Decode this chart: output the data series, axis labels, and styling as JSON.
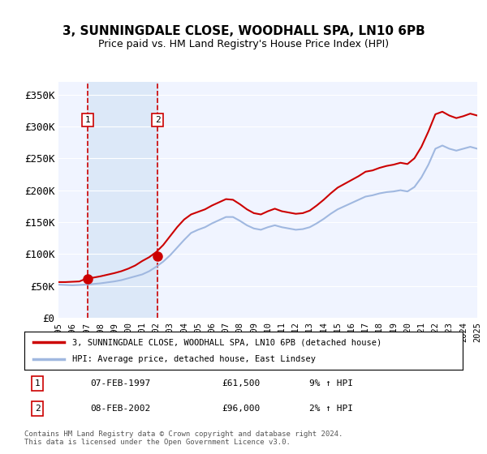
{
  "title": "3, SUNNINGDALE CLOSE, WOODHALL SPA, LN10 6PB",
  "subtitle": "Price paid vs. HM Land Registry's House Price Index (HPI)",
  "legend_line1": "3, SUNNINGDALE CLOSE, WOODHALL SPA, LN10 6PB (detached house)",
  "legend_line2": "HPI: Average price, detached house, East Lindsey",
  "sale1_label": "1",
  "sale1_date": "07-FEB-1997",
  "sale1_price": "£61,500",
  "sale1_hpi": "9% ↑ HPI",
  "sale2_label": "2",
  "sale2_date": "08-FEB-2002",
  "sale2_price": "£96,000",
  "sale2_hpi": "2% ↑ HPI",
  "footnote": "Contains HM Land Registry data © Crown copyright and database right 2024.\nThis data is licensed under the Open Government Licence v3.0.",
  "bg_color": "#ffffff",
  "plot_bg_color": "#f0f4ff",
  "grid_color": "#ffffff",
  "hpi_line_color": "#a0b8e0",
  "price_line_color": "#cc0000",
  "sale_marker_color": "#cc0000",
  "shading_color": "#dce8f8",
  "dashed_line_color": "#cc0000",
  "ylim": [
    0,
    370000
  ],
  "yticks": [
    0,
    50000,
    100000,
    150000,
    200000,
    250000,
    300000,
    350000
  ],
  "ytick_labels": [
    "£0",
    "£50K",
    "£100K",
    "£150K",
    "£200K",
    "£250K",
    "£300K",
    "£350K"
  ],
  "x_start_year": 1995,
  "x_end_year": 2025,
  "sale1_year": 1997.1,
  "sale2_year": 2002.1,
  "hpi_years": [
    1995,
    1995.5,
    1996,
    1996.5,
    1997,
    1997.5,
    1998,
    1998.5,
    1999,
    1999.5,
    2000,
    2000.5,
    2001,
    2001.5,
    2002,
    2002.5,
    2003,
    2003.5,
    2004,
    2004.5,
    2005,
    2005.5,
    2006,
    2006.5,
    2007,
    2007.5,
    2008,
    2008.5,
    2009,
    2009.5,
    2010,
    2010.5,
    2011,
    2011.5,
    2012,
    2012.5,
    2013,
    2013.5,
    2014,
    2014.5,
    2015,
    2015.5,
    2016,
    2016.5,
    2017,
    2017.5,
    2018,
    2018.5,
    2019,
    2019.5,
    2020,
    2020.5,
    2021,
    2021.5,
    2022,
    2022.5,
    2023,
    2023.5,
    2024,
    2024.5,
    2025
  ],
  "hpi_values": [
    52000,
    51500,
    51000,
    51500,
    52000,
    53000,
    54000,
    55500,
    57000,
    59000,
    62000,
    65000,
    68000,
    73000,
    80000,
    88000,
    98000,
    110000,
    122000,
    133000,
    138000,
    142000,
    148000,
    153000,
    158000,
    158000,
    152000,
    145000,
    140000,
    138000,
    142000,
    145000,
    142000,
    140000,
    138000,
    139000,
    142000,
    148000,
    155000,
    163000,
    170000,
    175000,
    180000,
    185000,
    190000,
    192000,
    195000,
    197000,
    198000,
    200000,
    198000,
    205000,
    220000,
    240000,
    265000,
    270000,
    265000,
    262000,
    265000,
    268000,
    265000
  ],
  "price_years": [
    1995,
    1995.5,
    1996,
    1996.5,
    1997,
    1997.5,
    1998,
    1998.5,
    1999,
    1999.5,
    2000,
    2000.5,
    2001,
    2001.5,
    2002,
    2002.5,
    2003,
    2003.5,
    2004,
    2004.5,
    2005,
    2005.5,
    2006,
    2006.5,
    2007,
    2007.5,
    2008,
    2008.5,
    2009,
    2009.5,
    2010,
    2010.5,
    2011,
    2011.5,
    2012,
    2012.5,
    2013,
    2013.5,
    2014,
    2014.5,
    2015,
    2015.5,
    2016,
    2016.5,
    2017,
    2017.5,
    2018,
    2018.5,
    2019,
    2019.5,
    2020,
    2020.5,
    2021,
    2021.5,
    2022,
    2022.5,
    2023,
    2023.5,
    2024,
    2024.5,
    2025
  ],
  "price_values": [
    56000,
    56000,
    56500,
    57000,
    61500,
    63000,
    65000,
    67500,
    70000,
    73000,
    77000,
    82000,
    89000,
    95000,
    103000,
    114000,
    128000,
    142000,
    154000,
    162000,
    166000,
    170000,
    176000,
    181000,
    186000,
    185000,
    178000,
    170000,
    164000,
    162000,
    167000,
    171000,
    167000,
    165000,
    163000,
    164000,
    168000,
    176000,
    185000,
    195000,
    204000,
    210000,
    216000,
    222000,
    229000,
    231000,
    235000,
    238000,
    240000,
    243000,
    241000,
    250000,
    268000,
    292000,
    319000,
    323000,
    317000,
    313000,
    316000,
    320000,
    317000
  ]
}
